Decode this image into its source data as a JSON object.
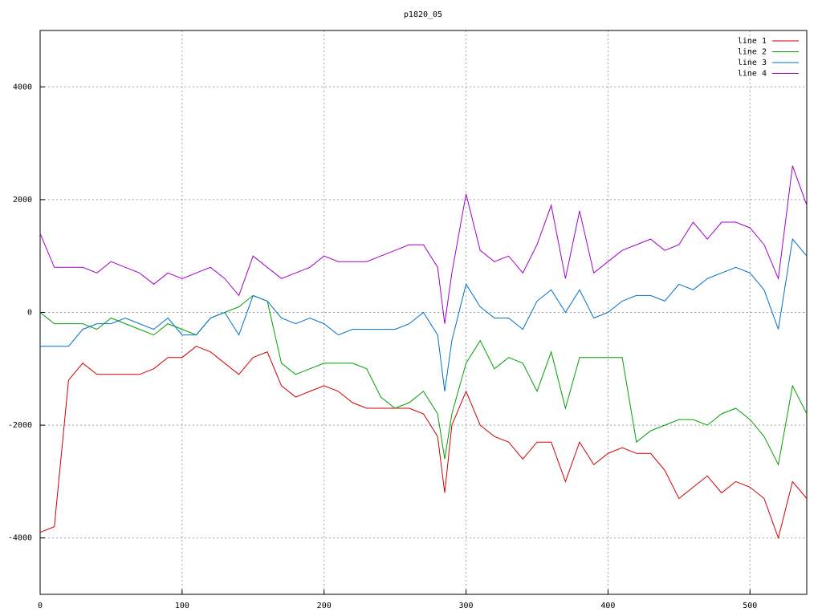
{
  "chart_data": {
    "type": "line",
    "title": "p1820_05",
    "x": [
      0,
      10,
      20,
      30,
      40,
      50,
      60,
      70,
      80,
      90,
      100,
      110,
      120,
      130,
      140,
      150,
      160,
      170,
      180,
      190,
      200,
      210,
      220,
      230,
      240,
      250,
      260,
      270,
      280,
      285,
      290,
      300,
      310,
      320,
      330,
      340,
      350,
      360,
      370,
      380,
      390,
      400,
      410,
      420,
      430,
      440,
      450,
      460,
      470,
      480,
      490,
      500,
      510,
      520,
      530,
      540
    ],
    "series": [
      {
        "name": "line 1",
        "color": "#d00000",
        "values": [
          -3900,
          -3800,
          -1200,
          -900,
          -1100,
          -1100,
          -1100,
          -1100,
          -1000,
          -800,
          -800,
          -600,
          -700,
          -900,
          -1100,
          -800,
          -700,
          -1300,
          -1500,
          -1400,
          -1300,
          -1400,
          -1600,
          -1700,
          -1700,
          -1700,
          -1700,
          -1800,
          -2200,
          -3200,
          -2000,
          -1400,
          -2000,
          -2200,
          -2300,
          -2600,
          -2300,
          -2300,
          -3000,
          -2300,
          -2700,
          -2500,
          -2400,
          -2500,
          -2500,
          -2800,
          -3300,
          -3100,
          -2900,
          -3200,
          -3000,
          -3100,
          -3300,
          -4000,
          -3000,
          -3300
        ]
      },
      {
        "name": "line 2",
        "color": "#00a000",
        "values": [
          0,
          -200,
          -200,
          -200,
          -300,
          -100,
          -200,
          -300,
          -400,
          -200,
          -300,
          -400,
          -100,
          0,
          100,
          300,
          200,
          -900,
          -1100,
          -1000,
          -900,
          -900,
          -900,
          -1000,
          -1500,
          -1700,
          -1600,
          -1400,
          -1800,
          -2600,
          -1800,
          -900,
          -500,
          -1000,
          -800,
          -900,
          -1400,
          -700,
          -1700,
          -800,
          -800,
          -800,
          -800,
          -2300,
          -2100,
          -2000,
          -1900,
          -1900,
          -2000,
          -1800,
          -1700,
          -1900,
          -2200,
          -2700,
          -1300,
          -1800
        ]
      },
      {
        "name": "line 3",
        "color": "#0070c8",
        "values": [
          -600,
          -600,
          -600,
          -300,
          -200,
          -200,
          -100,
          -200,
          -300,
          -100,
          -400,
          -400,
          -100,
          0,
          -400,
          300,
          200,
          -100,
          -200,
          -100,
          -200,
          -400,
          -300,
          -300,
          -300,
          -300,
          -200,
          0,
          -400,
          -1400,
          -500,
          500,
          100,
          -100,
          -100,
          -300,
          200,
          400,
          0,
          400,
          -100,
          0,
          200,
          300,
          300,
          200,
          500,
          400,
          600,
          700,
          800,
          700,
          400,
          -300,
          1300,
          1000
        ]
      },
      {
        "name": "line 4",
        "color": "#a000c8",
        "values": [
          1400,
          800,
          800,
          800,
          700,
          900,
          800,
          700,
          500,
          700,
          600,
          700,
          800,
          600,
          300,
          1000,
          800,
          600,
          700,
          800,
          1000,
          900,
          900,
          900,
          1000,
          1100,
          1200,
          1200,
          800,
          -200,
          700,
          2100,
          1100,
          900,
          1000,
          700,
          1200,
          1900,
          600,
          1800,
          700,
          900,
          1100,
          1200,
          1300,
          1100,
          1200,
          1600,
          1300,
          1600,
          1600,
          1500,
          1200,
          600,
          2600,
          1900
        ]
      }
    ],
    "xlim": [
      0,
      540
    ],
    "ylim": [
      -5000,
      5000
    ],
    "xticks": [
      0,
      100,
      200,
      300,
      400,
      500
    ],
    "yticks": [
      -4000,
      -2000,
      0,
      2000,
      4000
    ],
    "grid": true,
    "legend": "top-right"
  }
}
